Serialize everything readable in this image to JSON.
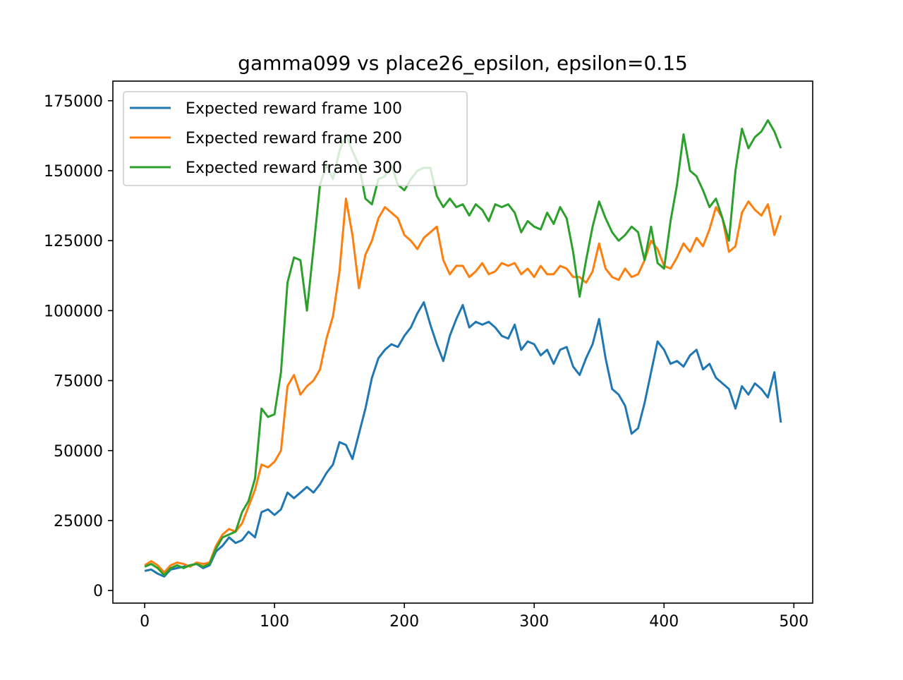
{
  "chart_data": {
    "type": "line",
    "title": "gamma099 vs place26_epsilon, epsilon=0.15",
    "xlabel": "",
    "ylabel": "",
    "xlim": [
      -24.5,
      514.5
    ],
    "ylim": [
      -4500,
      182000
    ],
    "xticks": [
      0,
      100,
      200,
      300,
      400,
      500
    ],
    "yticks": [
      0,
      25000,
      50000,
      75000,
      100000,
      125000,
      150000,
      175000
    ],
    "grid": false,
    "legend_position": "top-left",
    "series": [
      {
        "name": "Expected reward frame 100",
        "color": "#1f77b4",
        "points": [
          [
            0,
            7000
          ],
          [
            5,
            7500
          ],
          [
            10,
            6000
          ],
          [
            15,
            5000
          ],
          [
            20,
            7500
          ],
          [
            25,
            8000
          ],
          [
            30,
            8500
          ],
          [
            35,
            9000
          ],
          [
            40,
            9500
          ],
          [
            45,
            8000
          ],
          [
            50,
            9000
          ],
          [
            55,
            14000
          ],
          [
            60,
            16000
          ],
          [
            65,
            19000
          ],
          [
            70,
            17000
          ],
          [
            75,
            18000
          ],
          [
            80,
            21000
          ],
          [
            85,
            19000
          ],
          [
            90,
            28000
          ],
          [
            95,
            29000
          ],
          [
            100,
            27000
          ],
          [
            105,
            29000
          ],
          [
            110,
            35000
          ],
          [
            115,
            33000
          ],
          [
            120,
            35000
          ],
          [
            125,
            37000
          ],
          [
            130,
            35000
          ],
          [
            135,
            38000
          ],
          [
            140,
            42000
          ],
          [
            145,
            45000
          ],
          [
            150,
            53000
          ],
          [
            155,
            52000
          ],
          [
            160,
            47000
          ],
          [
            165,
            56000
          ],
          [
            170,
            65000
          ],
          [
            175,
            76000
          ],
          [
            180,
            83000
          ],
          [
            185,
            86000
          ],
          [
            190,
            88000
          ],
          [
            195,
            87000
          ],
          [
            200,
            91000
          ],
          [
            205,
            94000
          ],
          [
            210,
            99000
          ],
          [
            215,
            103000
          ],
          [
            220,
            95000
          ],
          [
            225,
            88000
          ],
          [
            230,
            82000
          ],
          [
            235,
            91000
          ],
          [
            240,
            97000
          ],
          [
            245,
            102000
          ],
          [
            250,
            94000
          ],
          [
            255,
            96000
          ],
          [
            260,
            95000
          ],
          [
            265,
            96000
          ],
          [
            270,
            94000
          ],
          [
            275,
            91000
          ],
          [
            280,
            90000
          ],
          [
            285,
            95000
          ],
          [
            290,
            86000
          ],
          [
            295,
            89000
          ],
          [
            300,
            88000
          ],
          [
            305,
            84000
          ],
          [
            310,
            86000
          ],
          [
            315,
            81000
          ],
          [
            320,
            86000
          ],
          [
            325,
            87000
          ],
          [
            330,
            80000
          ],
          [
            335,
            77000
          ],
          [
            340,
            83000
          ],
          [
            345,
            88000
          ],
          [
            350,
            97000
          ],
          [
            355,
            83000
          ],
          [
            360,
            72000
          ],
          [
            365,
            70000
          ],
          [
            370,
            66000
          ],
          [
            375,
            56000
          ],
          [
            380,
            58000
          ],
          [
            385,
            67000
          ],
          [
            390,
            78000
          ],
          [
            395,
            89000
          ],
          [
            400,
            86000
          ],
          [
            405,
            81000
          ],
          [
            410,
            82000
          ],
          [
            415,
            80000
          ],
          [
            420,
            84000
          ],
          [
            425,
            86000
          ],
          [
            430,
            79000
          ],
          [
            435,
            81000
          ],
          [
            440,
            76000
          ],
          [
            445,
            74000
          ],
          [
            450,
            72000
          ],
          [
            455,
            65000
          ],
          [
            460,
            73000
          ],
          [
            465,
            70000
          ],
          [
            470,
            74000
          ],
          [
            475,
            72000
          ],
          [
            480,
            69000
          ],
          [
            485,
            78000
          ],
          [
            490,
            60000
          ]
        ]
      },
      {
        "name": "Expected reward frame 200",
        "color": "#ff7f0e",
        "points": [
          [
            0,
            9000
          ],
          [
            5,
            10500
          ],
          [
            10,
            9000
          ],
          [
            15,
            6500
          ],
          [
            20,
            9000
          ],
          [
            25,
            10000
          ],
          [
            30,
            9500
          ],
          [
            35,
            8500
          ],
          [
            40,
            10000
          ],
          [
            45,
            9500
          ],
          [
            50,
            10000
          ],
          [
            55,
            16000
          ],
          [
            60,
            20000
          ],
          [
            65,
            22000
          ],
          [
            70,
            21000
          ],
          [
            75,
            24000
          ],
          [
            80,
            30000
          ],
          [
            85,
            36000
          ],
          [
            90,
            45000
          ],
          [
            95,
            44000
          ],
          [
            100,
            46000
          ],
          [
            105,
            50000
          ],
          [
            110,
            73000
          ],
          [
            115,
            77000
          ],
          [
            120,
            70000
          ],
          [
            125,
            73000
          ],
          [
            130,
            75000
          ],
          [
            135,
            79000
          ],
          [
            140,
            90000
          ],
          [
            145,
            98000
          ],
          [
            150,
            114000
          ],
          [
            155,
            140000
          ],
          [
            160,
            127000
          ],
          [
            165,
            108000
          ],
          [
            170,
            120000
          ],
          [
            175,
            125000
          ],
          [
            180,
            133000
          ],
          [
            185,
            137000
          ],
          [
            190,
            135000
          ],
          [
            195,
            133000
          ],
          [
            200,
            127000
          ],
          [
            205,
            125000
          ],
          [
            210,
            122000
          ],
          [
            215,
            126000
          ],
          [
            220,
            128000
          ],
          [
            225,
            130000
          ],
          [
            230,
            118000
          ],
          [
            235,
            113000
          ],
          [
            240,
            116000
          ],
          [
            245,
            116000
          ],
          [
            250,
            112000
          ],
          [
            255,
            114000
          ],
          [
            260,
            117000
          ],
          [
            265,
            113000
          ],
          [
            270,
            114000
          ],
          [
            275,
            117000
          ],
          [
            280,
            116000
          ],
          [
            285,
            117000
          ],
          [
            290,
            113000
          ],
          [
            295,
            115000
          ],
          [
            300,
            112000
          ],
          [
            305,
            116000
          ],
          [
            310,
            113000
          ],
          [
            315,
            113000
          ],
          [
            320,
            116000
          ],
          [
            325,
            115000
          ],
          [
            330,
            112000
          ],
          [
            335,
            112000
          ],
          [
            340,
            110000
          ],
          [
            345,
            114000
          ],
          [
            350,
            124000
          ],
          [
            355,
            115000
          ],
          [
            360,
            112000
          ],
          [
            365,
            111000
          ],
          [
            370,
            115000
          ],
          [
            375,
            112000
          ],
          [
            380,
            113000
          ],
          [
            385,
            118000
          ],
          [
            390,
            125000
          ],
          [
            395,
            122000
          ],
          [
            400,
            116000
          ],
          [
            405,
            115000
          ],
          [
            410,
            119000
          ],
          [
            415,
            124000
          ],
          [
            420,
            121000
          ],
          [
            425,
            126000
          ],
          [
            430,
            123000
          ],
          [
            435,
            129000
          ],
          [
            440,
            137000
          ],
          [
            445,
            133000
          ],
          [
            450,
            121000
          ],
          [
            455,
            123000
          ],
          [
            460,
            135000
          ],
          [
            465,
            139000
          ],
          [
            470,
            136000
          ],
          [
            475,
            134000
          ],
          [
            480,
            138000
          ],
          [
            485,
            127000
          ],
          [
            490,
            134000
          ]
        ]
      },
      {
        "name": "Expected reward frame 300",
        "color": "#2ca02c",
        "points": [
          [
            0,
            8500
          ],
          [
            5,
            9500
          ],
          [
            10,
            8000
          ],
          [
            15,
            5500
          ],
          [
            20,
            8000
          ],
          [
            25,
            9000
          ],
          [
            30,
            8000
          ],
          [
            35,
            9000
          ],
          [
            40,
            9500
          ],
          [
            45,
            8500
          ],
          [
            50,
            9500
          ],
          [
            55,
            15000
          ],
          [
            60,
            19000
          ],
          [
            65,
            20000
          ],
          [
            70,
            21000
          ],
          [
            75,
            28000
          ],
          [
            80,
            32000
          ],
          [
            85,
            40000
          ],
          [
            90,
            65000
          ],
          [
            95,
            62000
          ],
          [
            100,
            63000
          ],
          [
            105,
            78000
          ],
          [
            110,
            110000
          ],
          [
            115,
            119000
          ],
          [
            120,
            118000
          ],
          [
            125,
            100000
          ],
          [
            130,
            122000
          ],
          [
            135,
            145000
          ],
          [
            140,
            152000
          ],
          [
            145,
            147000
          ],
          [
            150,
            157000
          ],
          [
            155,
            163000
          ],
          [
            160,
            157000
          ],
          [
            165,
            152000
          ],
          [
            170,
            140000
          ],
          [
            175,
            138000
          ],
          [
            180,
            147000
          ],
          [
            185,
            148000
          ],
          [
            190,
            152000
          ],
          [
            195,
            145000
          ],
          [
            200,
            143000
          ],
          [
            205,
            147000
          ],
          [
            210,
            150000
          ],
          [
            215,
            151000
          ],
          [
            220,
            151000
          ],
          [
            225,
            141000
          ],
          [
            230,
            137000
          ],
          [
            235,
            140000
          ],
          [
            240,
            137000
          ],
          [
            245,
            138000
          ],
          [
            250,
            134000
          ],
          [
            255,
            138000
          ],
          [
            260,
            136000
          ],
          [
            265,
            132000
          ],
          [
            270,
            138000
          ],
          [
            275,
            137000
          ],
          [
            280,
            138000
          ],
          [
            285,
            135000
          ],
          [
            290,
            128000
          ],
          [
            295,
            132000
          ],
          [
            300,
            130000
          ],
          [
            305,
            129000
          ],
          [
            310,
            135000
          ],
          [
            315,
            131000
          ],
          [
            320,
            137000
          ],
          [
            325,
            133000
          ],
          [
            330,
            121000
          ],
          [
            335,
            105000
          ],
          [
            340,
            118000
          ],
          [
            345,
            130000
          ],
          [
            350,
            139000
          ],
          [
            355,
            133000
          ],
          [
            360,
            128000
          ],
          [
            365,
            125000
          ],
          [
            370,
            127000
          ],
          [
            375,
            130000
          ],
          [
            380,
            128000
          ],
          [
            385,
            118000
          ],
          [
            390,
            130000
          ],
          [
            395,
            117000
          ],
          [
            400,
            115000
          ],
          [
            405,
            132000
          ],
          [
            410,
            145000
          ],
          [
            415,
            163000
          ],
          [
            420,
            150000
          ],
          [
            425,
            148000
          ],
          [
            430,
            143000
          ],
          [
            435,
            137000
          ],
          [
            440,
            140000
          ],
          [
            445,
            133000
          ],
          [
            450,
            125000
          ],
          [
            455,
            150000
          ],
          [
            460,
            165000
          ],
          [
            465,
            158000
          ],
          [
            470,
            162000
          ],
          [
            475,
            164000
          ],
          [
            480,
            168000
          ],
          [
            485,
            164000
          ],
          [
            490,
            158000
          ]
        ]
      }
    ]
  }
}
